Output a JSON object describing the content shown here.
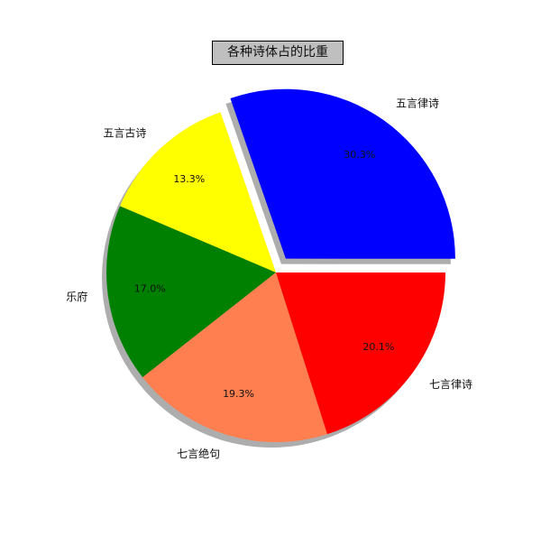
{
  "chart_data": {
    "type": "pie",
    "title": "各种诗体占的比重",
    "categories": [
      "五言律诗",
      "五言古诗",
      "乐府",
      "七言绝句",
      "七言律诗"
    ],
    "values": [
      30.3,
      13.3,
      17.0,
      19.3,
      20.1
    ],
    "percent_labels": [
      "30.3%",
      "13.3%",
      "17.0%",
      "19.3%",
      "20.1%"
    ],
    "colors": [
      "#0000ff",
      "#ffff00",
      "#008000",
      "#ff7f50",
      "#ff0000"
    ],
    "explode": [
      true,
      false,
      false,
      false,
      false
    ],
    "shadow": true,
    "start_angle": 0,
    "direction": "counterclockwise"
  }
}
